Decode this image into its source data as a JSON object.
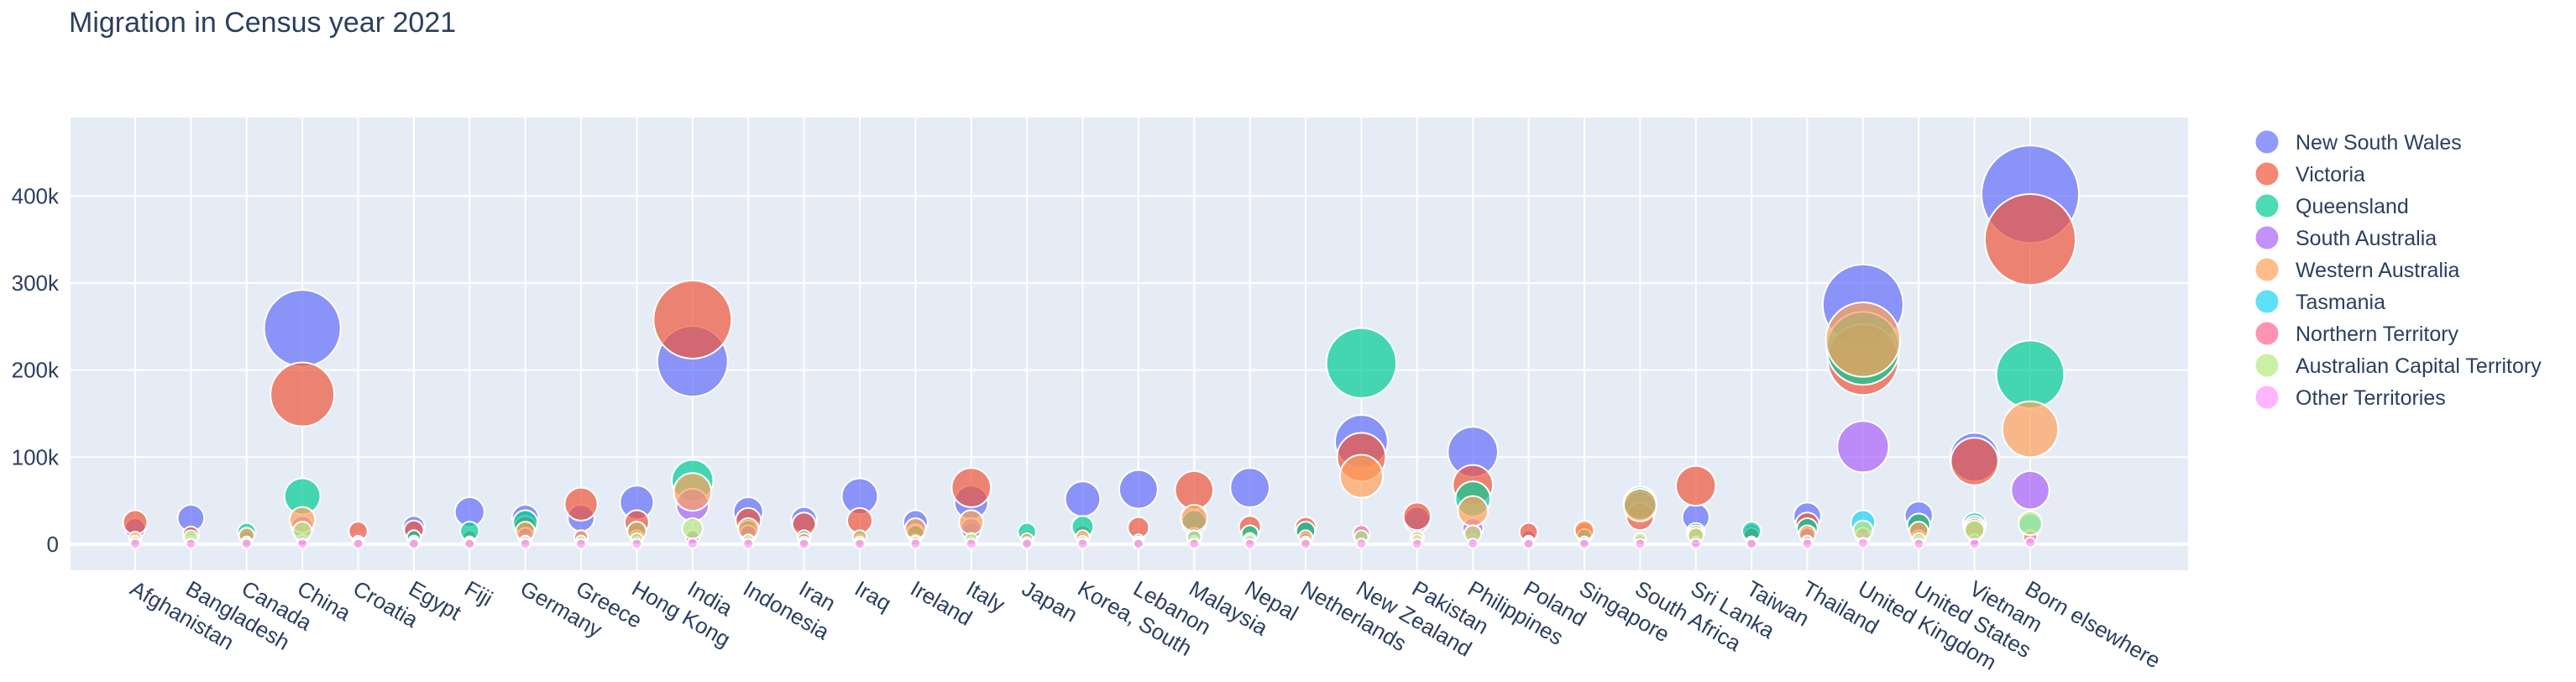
{
  "chart_data": {
    "type": "scatter",
    "title": "Migration in Census year 2021",
    "xlabel": "",
    "ylabel": "",
    "ylim": [
      -30000,
      490000
    ],
    "yticks": [
      0,
      100000,
      200000,
      300000,
      400000
    ],
    "ytick_labels": [
      "0",
      "100k",
      "200k",
      "300k",
      "400k"
    ],
    "grid": true,
    "legend_position": "right",
    "categories": [
      "Afghanistan",
      "Bangladesh",
      "Canada",
      "China",
      "Croatia",
      "Egypt",
      "Fiji",
      "Germany",
      "Greece",
      "Hong Kong",
      "India",
      "Indonesia",
      "Iran",
      "Iraq",
      "Ireland",
      "Italy",
      "Japan",
      "Korea, South",
      "Lebanon",
      "Malaysia",
      "Nepal",
      "Netherlands",
      "New Zealand",
      "Pakistan",
      "Philippines",
      "Poland",
      "Singapore",
      "South Africa",
      "Sri Lanka",
      "Taiwan",
      "Thailand",
      "United Kingdom",
      "United States",
      "Vietnam",
      "Born elsewhere"
    ],
    "series": [
      {
        "name": "New South Wales",
        "color": "#636efa",
        "values": [
          18000,
          30000,
          8000,
          248000,
          6000,
          20000,
          37000,
          30000,
          30000,
          48000,
          210000,
          37000,
          28000,
          55000,
          25000,
          48000,
          8000,
          52000,
          63000,
          28000,
          65000,
          15000,
          118000,
          28000,
          106000,
          8000,
          14000,
          42000,
          31000,
          13000,
          32000,
          275000,
          33000,
          100000,
          402000
        ]
      },
      {
        "name": "Victoria",
        "color": "#EF553B",
        "values": [
          25000,
          11000,
          7000,
          172000,
          15000,
          16000,
          8000,
          20000,
          46000,
          25000,
          258000,
          27000,
          23000,
          27000,
          13000,
          65000,
          5000,
          12000,
          19000,
          62000,
          20000,
          19000,
          100000,
          32000,
          68000,
          14000,
          15000,
          32000,
          67000,
          10000,
          23000,
          212000,
          22000,
          95000,
          350000
        ]
      },
      {
        "name": "Queensland",
        "color": "#00cc96",
        "values": [
          6000,
          6000,
          14000,
          55000,
          4000,
          8000,
          15000,
          25000,
          8000,
          15000,
          73000,
          16000,
          8000,
          8000,
          12000,
          14000,
          14000,
          20000,
          5000,
          25000,
          12000,
          15000,
          208000,
          8000,
          52000,
          4000,
          9000,
          47000,
          14000,
          15000,
          18000,
          225000,
          22000,
          23000,
          195000
        ]
      },
      {
        "name": "South Australia",
        "color": "#ab63fa",
        "values": [
          5000,
          4000,
          3000,
          20000,
          3000,
          4000,
          3000,
          10000,
          8000,
          8000,
          45000,
          12000,
          6000,
          5000,
          5000,
          18000,
          3000,
          6000,
          2000,
          10000,
          4000,
          6000,
          12000,
          5000,
          18000,
          4000,
          3000,
          5000,
          10000,
          3000,
          10000,
          112000,
          8000,
          20000,
          62000
        ]
      },
      {
        "name": "Western Australia",
        "color": "#FFA15A",
        "values": [
          7000,
          4000,
          10000,
          28000,
          4000,
          4000,
          3000,
          15000,
          8000,
          15000,
          60000,
          18000,
          6000,
          8000,
          18000,
          25000,
          6000,
          8000,
          3000,
          30000,
          6000,
          8000,
          78000,
          7000,
          38000,
          3000,
          16000,
          45000,
          12000,
          3000,
          12000,
          235000,
          15000,
          18000,
          132000
        ]
      },
      {
        "name": "Tasmania",
        "color": "#19d3f3",
        "values": [
          2000,
          2000,
          3000,
          5000,
          1000,
          1000,
          2000,
          4000,
          2000,
          3000,
          8000,
          3000,
          2000,
          1000,
          3000,
          3000,
          2000,
          2000,
          1000,
          4000,
          3000,
          3000,
          10000,
          2000,
          5000,
          1000,
          2000,
          4000,
          3000,
          1000,
          3000,
          25000,
          4000,
          3000,
          22000
        ]
      },
      {
        "name": "Northern Territory",
        "color": "#FF6692",
        "values": [
          3000,
          3000,
          2000,
          4000,
          1000,
          1000,
          2000,
          3000,
          4000,
          3000,
          8000,
          3000,
          2000,
          1000,
          3000,
          3000,
          2000,
          2000,
          1000,
          3000,
          3000,
          2000,
          12000,
          3000,
          12000,
          1000,
          2000,
          4000,
          3000,
          1000,
          4000,
          10000,
          3000,
          5000,
          8000
        ]
      },
      {
        "name": "Australian Capital Territory",
        "color": "#B6E880",
        "values": [
          4000,
          8000,
          3000,
          15000,
          2000,
          2000,
          2000,
          4000,
          4000,
          6000,
          18000,
          5000,
          3000,
          3000,
          4000,
          6000,
          2000,
          4000,
          2000,
          8000,
          5000,
          3000,
          8000,
          5000,
          12000,
          2000,
          3000,
          6000,
          10000,
          2000,
          4000,
          16000,
          6000,
          16000,
          24000
        ]
      },
      {
        "name": "Other Territories",
        "color": "#FF97FF",
        "values": [
          500,
          500,
          500,
          800,
          300,
          300,
          300,
          500,
          300,
          500,
          1000,
          500,
          300,
          300,
          500,
          500,
          300,
          500,
          300,
          500,
          300,
          300,
          800,
          300,
          800,
          300,
          300,
          500,
          500,
          300,
          500,
          1500,
          500,
          500,
          2000
        ]
      }
    ]
  }
}
